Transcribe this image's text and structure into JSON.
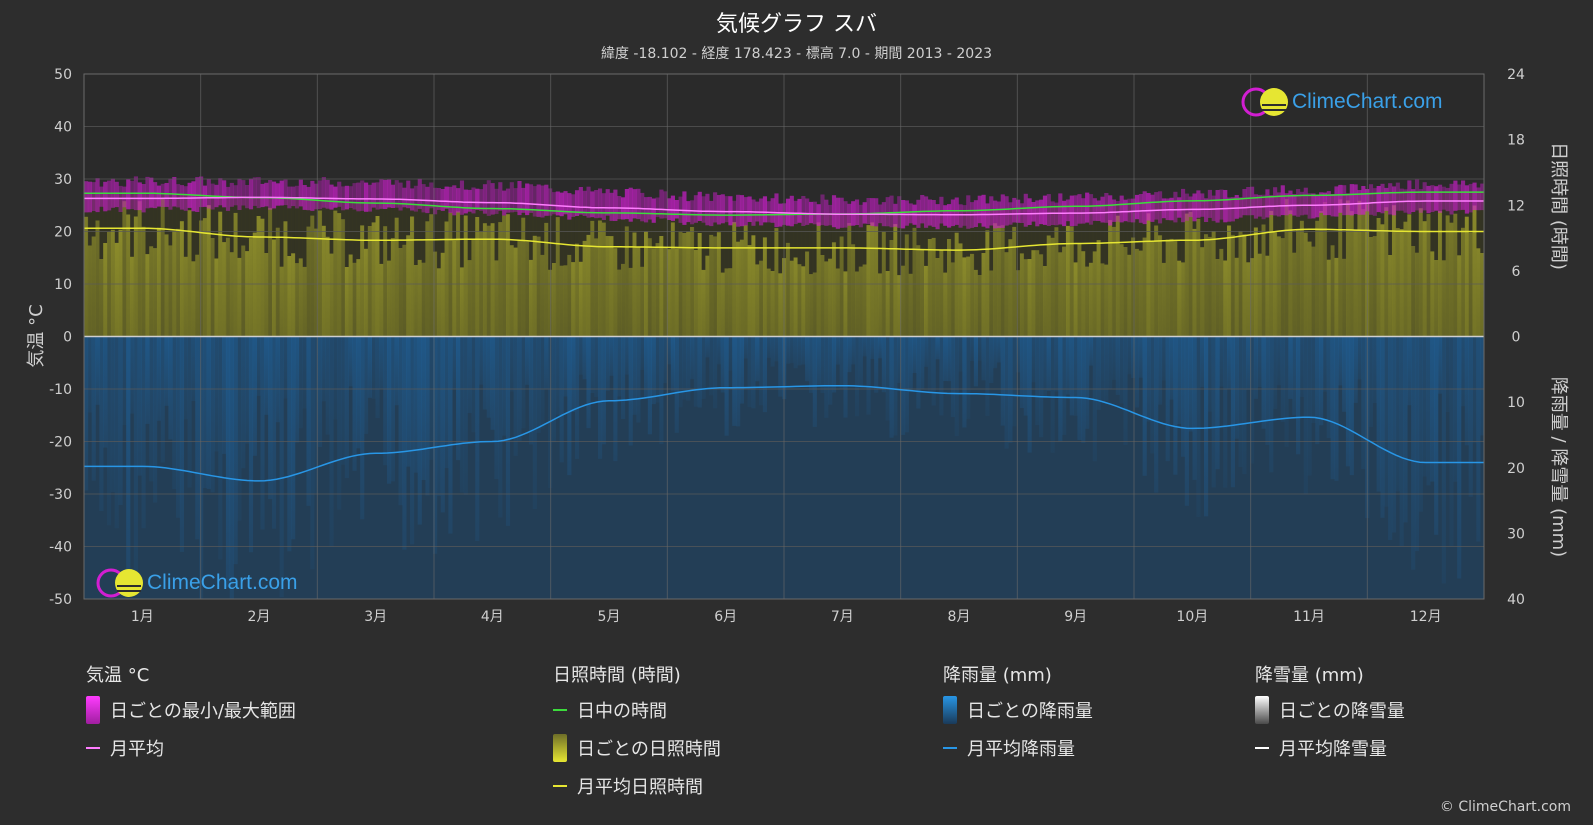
{
  "header": {
    "title": "気候グラフ スバ",
    "subtitle": "緯度 -18.102 - 経度 178.423 - 標高 7.0 - 期間 2013 - 2023"
  },
  "colors": {
    "background": "#2d2d2d",
    "temp_range": "#d21ed2",
    "temp_avg": "#ff7dff",
    "daylight": "#3cdc3c",
    "sunshine_fill": "#8c8c28",
    "sunshine_avg": "#e6e632",
    "rain_fill": "#1e64a0",
    "rain_avg": "#2896e6",
    "snow_avg": "#ffffff"
  },
  "chart_data": {
    "type": "line",
    "title": "気候グラフ スバ",
    "categories": [
      "1月",
      "2月",
      "3月",
      "4月",
      "5月",
      "6月",
      "7月",
      "8月",
      "9月",
      "10月",
      "11月",
      "12月"
    ],
    "axes": {
      "left": {
        "label": "気温 °C",
        "range": [
          -50,
          50
        ],
        "ticks": [
          50,
          40,
          30,
          20,
          10,
          0,
          -10,
          -20,
          -30,
          -40,
          -50
        ]
      },
      "right_top": {
        "label": "日照時間 (時間)",
        "range": [
          0,
          24
        ],
        "ticks": [
          24,
          18,
          12,
          6,
          0
        ]
      },
      "right_bottom": {
        "label": "降雨量 / 降雪量 (mm)",
        "range": [
          0,
          40
        ],
        "ticks": [
          0,
          10,
          20,
          30,
          40
        ]
      }
    },
    "grid": true,
    "series": [
      {
        "name": "日ごとの最小/最大範囲",
        "unit": "°C",
        "type": "band",
        "min": [
          24.2,
          24.5,
          24.2,
          23.5,
          22.5,
          21.5,
          21.0,
          21.0,
          21.5,
          22.2,
          23.0,
          23.8
        ],
        "max": [
          29.5,
          29.5,
          29.3,
          28.8,
          27.5,
          26.5,
          26.0,
          26.0,
          26.5,
          27.2,
          28.0,
          29.0
        ]
      },
      {
        "name": "月平均",
        "unit": "°C",
        "values": [
          26.3,
          26.5,
          26.2,
          25.5,
          24.5,
          23.8,
          23.3,
          23.2,
          23.5,
          24.2,
          25.0,
          25.8
        ]
      },
      {
        "name": "日中の時間",
        "unit": "時間",
        "values": [
          13.1,
          12.7,
          12.2,
          11.7,
          11.3,
          11.1,
          11.2,
          11.5,
          11.9,
          12.4,
          12.9,
          13.2
        ]
      },
      {
        "name": "日ごとの日照時間",
        "unit": "時間",
        "type": "area",
        "values": [
          9.9,
          9.1,
          8.8,
          8.9,
          8.2,
          8.1,
          8.1,
          7.9,
          8.5,
          8.8,
          9.8,
          9.6
        ]
      },
      {
        "name": "月平均日照時間",
        "unit": "時間",
        "values": [
          9.9,
          9.1,
          8.8,
          8.9,
          8.2,
          8.1,
          8.1,
          7.9,
          8.5,
          8.8,
          9.8,
          9.6
        ]
      },
      {
        "name": "月平均降雨量",
        "unit": "mm",
        "values": [
          19.8,
          22.0,
          17.8,
          16.0,
          9.8,
          7.8,
          7.5,
          8.7,
          9.3,
          14.0,
          12.3,
          19.2
        ]
      },
      {
        "name": "月平均降雪量",
        "unit": "mm",
        "values": [
          0,
          0,
          0,
          0,
          0,
          0,
          0,
          0,
          0,
          0,
          0,
          0
        ]
      }
    ]
  },
  "legend": {
    "temperature": {
      "heading": "気温 °C",
      "items": [
        "日ごとの最小/最大範囲",
        "月平均"
      ]
    },
    "sunshine": {
      "heading": "日照時間 (時間)",
      "items": [
        "日中の時間",
        "日ごとの日照時間",
        "月平均日照時間"
      ]
    },
    "rain": {
      "heading": "降雨量 (mm)",
      "items": [
        "日ごとの降雨量",
        "月平均降雨量"
      ]
    },
    "snow": {
      "heading": "降雪量 (mm)",
      "items": [
        "日ごとの降雪量",
        "月平均降雪量"
      ]
    }
  },
  "branding": {
    "logo_text": "ClimeChart.com",
    "copyright": "© ClimeChart.com"
  }
}
